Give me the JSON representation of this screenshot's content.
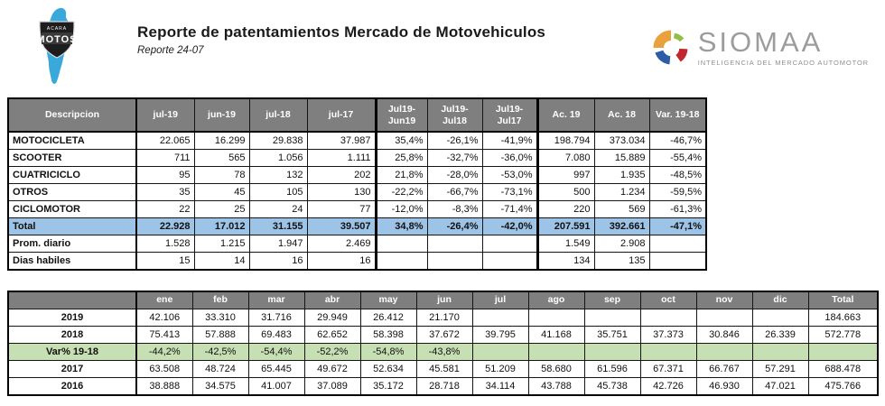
{
  "header": {
    "title": "Reporte de patentamientos Mercado de Motovehiculos",
    "subtitle": "Reporte 24-07",
    "acara": {
      "line1": "ACARA",
      "line2": "MOTOS"
    },
    "siomaa": {
      "brand": "SIOMAA",
      "tagline": "INTELIGENCIA DEL MERCADO AUTOMOTOR"
    }
  },
  "colors": {
    "header_gray": "#7f7f7f",
    "total_row_blue": "#9dc3e6",
    "var_row_green": "#c6e0b4",
    "map_blue": "#39a9db",
    "siomaa_orange": "#e9a13b",
    "siomaa_green": "#8fbf44",
    "siomaa_red": "#c1272d",
    "siomaa_blue": "#2e5ca6"
  },
  "table1": {
    "headers": [
      "Descripcion",
      "jul-19",
      "jun-19",
      "jul-18",
      "jul-17",
      "Jul19-\nJun19",
      "Jul19-\nJul18",
      "Jul19-\nJul17",
      "Ac. 19",
      "Ac. 18",
      "Var. 19-18"
    ],
    "rows": [
      {
        "label": "MOTOCICLETA",
        "variant": "cat",
        "values": [
          "22.065",
          "16.299",
          "29.838",
          "37.987",
          "35,4%",
          "-26,1%",
          "-41,9%",
          "198.794",
          "373.034",
          "-46,7%"
        ]
      },
      {
        "label": "SCOOTER",
        "variant": "cat",
        "values": [
          "711",
          "565",
          "1.056",
          "1.111",
          "25,8%",
          "-32,7%",
          "-36,0%",
          "7.080",
          "15.889",
          "-55,4%"
        ]
      },
      {
        "label": "CUATRICICLO",
        "variant": "cat",
        "values": [
          "95",
          "78",
          "132",
          "202",
          "21,8%",
          "-28,0%",
          "-53,0%",
          "997",
          "1.935",
          "-48,5%"
        ]
      },
      {
        "label": "OTROS",
        "variant": "cat",
        "values": [
          "35",
          "45",
          "105",
          "130",
          "-22,2%",
          "-66,7%",
          "-73,1%",
          "500",
          "1.234",
          "-59,5%"
        ]
      },
      {
        "label": "CICLOMOTOR",
        "variant": "cat",
        "values": [
          "22",
          "25",
          "24",
          "77",
          "-12,0%",
          "-8,3%",
          "-71,4%",
          "220",
          "569",
          "-61,3%"
        ]
      },
      {
        "label": "Total",
        "variant": "total",
        "values": [
          "22.928",
          "17.012",
          "31.155",
          "39.507",
          "34,8%",
          "-26,4%",
          "-42,0%",
          "207.591",
          "392.661",
          "-47,1%"
        ]
      },
      {
        "label": "Prom. diario",
        "variant": "plain",
        "values": [
          "1.528",
          "1.215",
          "1.947",
          "2.469",
          "",
          "",
          "",
          "1.549",
          "2.908",
          ""
        ]
      },
      {
        "label": "Dias habiles",
        "variant": "plain",
        "values": [
          "15",
          "14",
          "16",
          "16",
          "",
          "",
          "",
          "134",
          "135",
          ""
        ]
      }
    ]
  },
  "table2": {
    "headers": [
      "",
      "ene",
      "feb",
      "mar",
      "abr",
      "may",
      "jun",
      "jul",
      "ago",
      "sep",
      "oct",
      "nov",
      "dic",
      "Total"
    ],
    "rows": [
      {
        "label": "2019",
        "variant": "year",
        "values": [
          "42.106",
          "33.310",
          "31.716",
          "29.949",
          "26.412",
          "21.170",
          "",
          "",
          "",
          "",
          "",
          "",
          "184.663"
        ]
      },
      {
        "label": "2018",
        "variant": "year",
        "values": [
          "75.413",
          "57.888",
          "69.483",
          "62.652",
          "58.398",
          "37.672",
          "39.795",
          "41.168",
          "35.751",
          "37.373",
          "30.846",
          "26.339",
          "572.778"
        ]
      },
      {
        "label": "Var% 19-18",
        "variant": "green",
        "values": [
          "-44,2%",
          "-42,5%",
          "-54,4%",
          "-52,2%",
          "-54,8%",
          "-43,8%",
          "",
          "",
          "",
          "",
          "",
          "",
          ""
        ]
      },
      {
        "label": "2017",
        "variant": "year",
        "values": [
          "63.508",
          "48.724",
          "65.445",
          "49.672",
          "52.634",
          "45.581",
          "51.209",
          "58.680",
          "61.596",
          "67.371",
          "66.767",
          "57.291",
          "688.478"
        ]
      },
      {
        "label": "2016",
        "variant": "year",
        "values": [
          "38.888",
          "34.575",
          "41.007",
          "37.089",
          "35.172",
          "28.718",
          "34.114",
          "43.788",
          "45.738",
          "42.726",
          "46.930",
          "47.021",
          "475.766"
        ]
      }
    ]
  }
}
